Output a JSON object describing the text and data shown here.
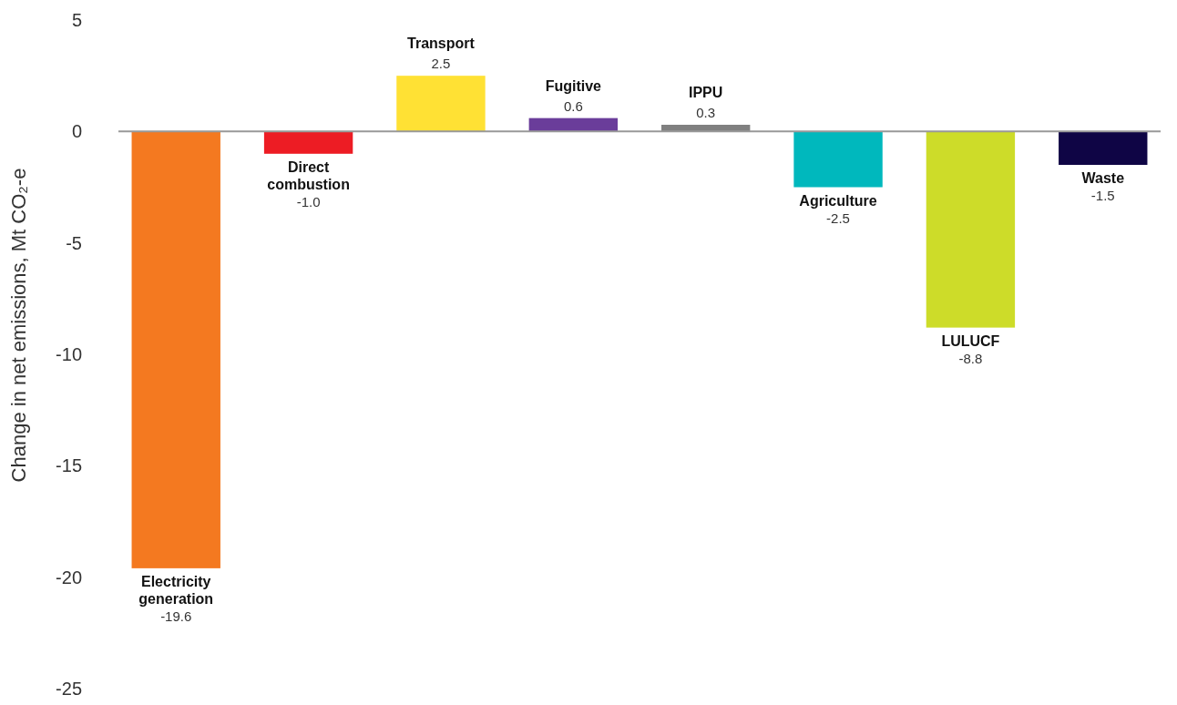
{
  "chart_data": {
    "type": "bar",
    "ylabel": "Change in net emissions, Mt CO₂-e",
    "categories": [
      "Electricity generation",
      "Direct combustion",
      "Transport",
      "Fugitive",
      "IPPU",
      "Agriculture",
      "LULUCF",
      "Waste"
    ],
    "values": [
      -19.6,
      -1.0,
      2.5,
      0.6,
      0.3,
      -2.5,
      -8.8,
      -1.5
    ],
    "value_labels": [
      "-19.6",
      "-1.0",
      "2.5",
      "0.6",
      "0.3",
      "-2.5",
      "-8.8",
      "-1.5"
    ],
    "colors": [
      "#f47920",
      "#ed1c24",
      "#ffe134",
      "#6a3d9a",
      "#808080",
      "#00b8bd",
      "#cddc29",
      "#0f0545"
    ],
    "ylim": [
      -25,
      5
    ],
    "yticks": [
      5,
      0,
      -5,
      -10,
      -15,
      -20,
      -25
    ]
  }
}
